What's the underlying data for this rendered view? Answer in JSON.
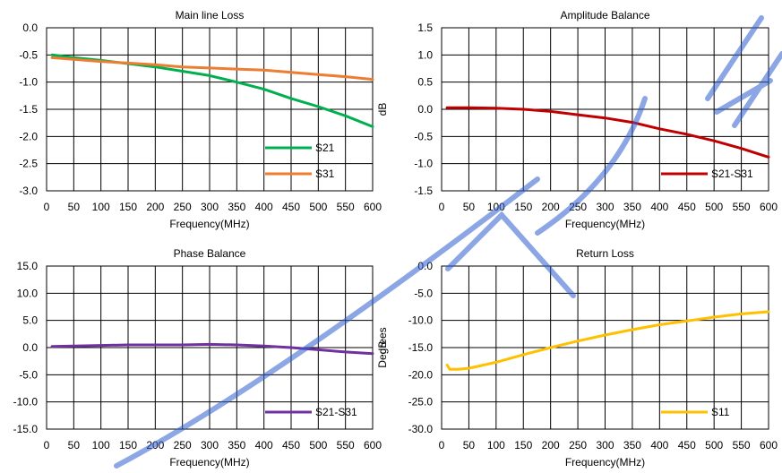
{
  "chart_data": [
    {
      "type": "line",
      "title": "Main line Loss",
      "xlabel": "Frequency(MHz)",
      "ylabel": "",
      "xlim": [
        0,
        600
      ],
      "ylim": [
        -3.0,
        0.0
      ],
      "x_ticks": [
        0,
        50,
        100,
        150,
        200,
        250,
        300,
        350,
        400,
        450,
        500,
        550,
        600
      ],
      "y_ticks": [
        0.0,
        -0.5,
        -1.0,
        -1.5,
        -2.0,
        -2.5,
        -3.0
      ],
      "x_tick_labels": [
        "0",
        "50",
        "100",
        "150",
        "200",
        "250",
        "300",
        "350",
        "400",
        "450",
        "500",
        "550",
        "600"
      ],
      "y_tick_labels": [
        "0.0",
        "-0.5",
        "-1.0",
        "-1.5",
        "-2.0",
        "-2.5",
        "-3.0"
      ],
      "grid": true,
      "legend_position": "bottom-right",
      "series": [
        {
          "name": "S21",
          "color": "#00b050",
          "x": [
            10,
            50,
            100,
            150,
            200,
            250,
            300,
            350,
            400,
            450,
            500,
            550,
            600
          ],
          "y": [
            -0.5,
            -0.55,
            -0.6,
            -0.66,
            -0.72,
            -0.8,
            -0.88,
            -1.0,
            -1.13,
            -1.3,
            -1.45,
            -1.62,
            -1.82
          ]
        },
        {
          "name": "S31",
          "color": "#ed7d31",
          "x": [
            10,
            50,
            100,
            150,
            200,
            250,
            300,
            350,
            400,
            450,
            500,
            550,
            600
          ],
          "y": [
            -0.55,
            -0.58,
            -0.62,
            -0.65,
            -0.68,
            -0.72,
            -0.74,
            -0.76,
            -0.78,
            -0.82,
            -0.86,
            -0.9,
            -0.95
          ]
        }
      ]
    },
    {
      "type": "line",
      "title": "Amplitude Balance",
      "xlabel": "Frequency(MHz)",
      "ylabel": "dB",
      "xlim": [
        0,
        600
      ],
      "ylim": [
        -1.5,
        1.5
      ],
      "x_ticks": [
        0,
        50,
        100,
        150,
        200,
        250,
        300,
        350,
        400,
        450,
        500,
        550,
        600
      ],
      "y_ticks": [
        1.5,
        1.0,
        0.5,
        0.0,
        -0.5,
        -1.0,
        -1.5
      ],
      "x_tick_labels": [
        "0",
        "50",
        "100",
        "150",
        "200",
        "250",
        "300",
        "350",
        "400",
        "450",
        "500",
        "550",
        "600"
      ],
      "y_tick_labels": [
        "1.5",
        "1.0",
        "0.5",
        "0.0",
        "-0.5",
        "-1.0",
        "-1.5"
      ],
      "grid": true,
      "legend_position": "bottom-right",
      "series": [
        {
          "name": "S21-S31",
          "color": "#c00000",
          "x": [
            10,
            50,
            100,
            150,
            200,
            250,
            300,
            350,
            400,
            450,
            500,
            550,
            600
          ],
          "y": [
            0.03,
            0.03,
            0.02,
            0.0,
            -0.04,
            -0.1,
            -0.16,
            -0.24,
            -0.36,
            -0.46,
            -0.58,
            -0.72,
            -0.88
          ]
        }
      ]
    },
    {
      "type": "line",
      "title": "Phase Balance",
      "xlabel": "Frequency(MHz)",
      "ylabel": "Degrees",
      "xlim": [
        0,
        600
      ],
      "ylim": [
        -15.0,
        15.0
      ],
      "x_ticks": [
        0,
        50,
        100,
        150,
        200,
        250,
        300,
        350,
        400,
        450,
        500,
        550,
        600
      ],
      "y_ticks": [
        15.0,
        10.0,
        5.0,
        0.0,
        -5.0,
        -10.0,
        -15.0
      ],
      "x_tick_labels": [
        "0",
        "50",
        "100",
        "150",
        "200",
        "250",
        "300",
        "350",
        "400",
        "450",
        "500",
        "550",
        "600"
      ],
      "y_tick_labels": [
        "15.0",
        "10.0",
        "5.0",
        "0.0",
        "-5.0",
        "-10.0",
        "-15.0"
      ],
      "grid": true,
      "legend_position": "bottom-right",
      "series": [
        {
          "name": "S21-S31",
          "color": "#7030a0",
          "x": [
            10,
            50,
            100,
            150,
            200,
            250,
            300,
            350,
            400,
            450,
            500,
            550,
            600
          ],
          "y": [
            0.2,
            0.3,
            0.4,
            0.5,
            0.5,
            0.5,
            0.6,
            0.5,
            0.3,
            0.0,
            -0.4,
            -0.8,
            -1.1
          ]
        }
      ]
    },
    {
      "type": "line",
      "title": "Return Loss",
      "xlabel": "Frequency(MHz)",
      "ylabel": "dB",
      "xlim": [
        0,
        600
      ],
      "ylim": [
        -30.0,
        0.0
      ],
      "x_ticks": [
        0,
        50,
        100,
        150,
        200,
        250,
        300,
        350,
        400,
        450,
        500,
        550,
        600
      ],
      "y_ticks": [
        0.0,
        -5.0,
        -10.0,
        -15.0,
        -20.0,
        -25.0,
        -30.0
      ],
      "x_tick_labels": [
        "0",
        "50",
        "100",
        "150",
        "200",
        "250",
        "300",
        "350",
        "400",
        "450",
        "500",
        "550",
        "600"
      ],
      "y_tick_labels": [
        "0.0",
        "-5.0",
        "-10.0",
        "-15.0",
        "-20.0",
        "-25.0",
        "-30.0"
      ],
      "grid": true,
      "legend_position": "bottom-right",
      "series": [
        {
          "name": "S11",
          "color": "#ffc000",
          "x": [
            10,
            15,
            30,
            50,
            100,
            150,
            200,
            250,
            300,
            350,
            400,
            450,
            500,
            550,
            600
          ],
          "y": [
            -18.2,
            -19.0,
            -19.0,
            -18.8,
            -17.7,
            -16.3,
            -15.0,
            -13.8,
            -12.7,
            -11.7,
            -10.8,
            -10.1,
            -9.4,
            -8.8,
            -8.4
          ]
        }
      ]
    }
  ],
  "watermark": {
    "color": "#2f5fd0"
  }
}
